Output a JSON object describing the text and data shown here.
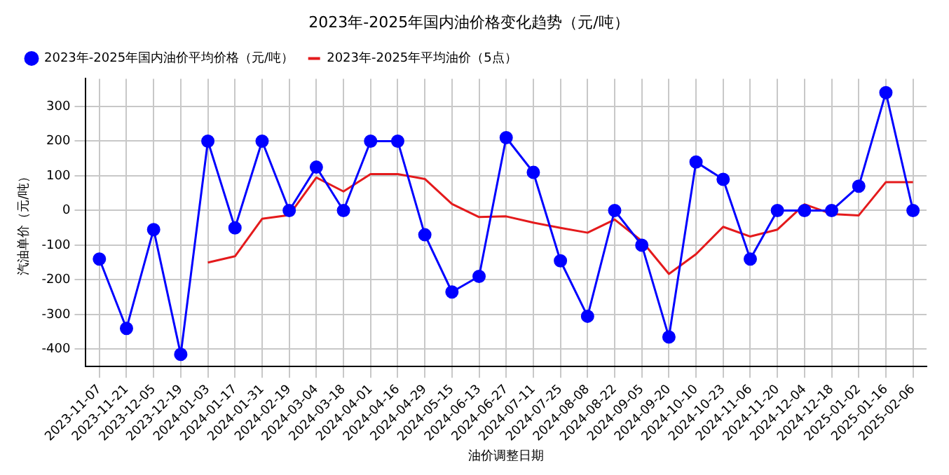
{
  "chart_data": {
    "type": "line",
    "title": "2023年-2025年国内油价格变化趋势（元/吨）",
    "xlabel": "油价调整日期",
    "ylabel": "汽油单价（元/吨）",
    "categories": [
      "2023-11-07",
      "2023-11-21",
      "2023-12-05",
      "2023-12-19",
      "2024-01-03",
      "2024-01-17",
      "2024-01-31",
      "2024-02-19",
      "2024-03-04",
      "2024-03-18",
      "2024-04-01",
      "2024-04-16",
      "2024-04-29",
      "2024-05-15",
      "2024-06-13",
      "2024-06-27",
      "2024-07-11",
      "2024-07-25",
      "2024-08-08",
      "2024-08-22",
      "2024-09-05",
      "2024-09-20",
      "2024-10-10",
      "2024-10-23",
      "2024-11-06",
      "2024-11-20",
      "2024-12-04",
      "2024-12-18",
      "2025-01-02",
      "2025-01-16",
      "2025-02-06"
    ],
    "series": [
      {
        "name": "2023年-2025年国内油价平均价格（元/吨）",
        "color": "#0000ff",
        "marker": "circle",
        "values": [
          -140,
          -340,
          -55,
          -415,
          200,
          -50,
          200,
          0,
          125,
          0,
          200,
          200,
          -70,
          -235,
          -190,
          210,
          110,
          -145,
          -305,
          0,
          -100,
          -365,
          140,
          90,
          -140,
          0,
          0,
          0,
          70,
          340,
          0
        ]
      },
      {
        "name": "2023年-2025年平均油价（5点）",
        "color": "#e41a1c",
        "marker": "none",
        "values": [
          null,
          null,
          null,
          null,
          -150,
          -132,
          -24,
          -13,
          95,
          55,
          105,
          105,
          91,
          19,
          -19,
          -17,
          -35,
          -50,
          -64,
          -26,
          -88,
          -183,
          -126,
          -47,
          -75,
          -55,
          18,
          -10,
          -14,
          82,
          82
        ]
      }
    ],
    "ylim": [
      -450,
      380
    ],
    "yticks": [
      -400,
      -300,
      -200,
      -100,
      0,
      100,
      200,
      300
    ],
    "grid": true,
    "legend": "top left"
  }
}
